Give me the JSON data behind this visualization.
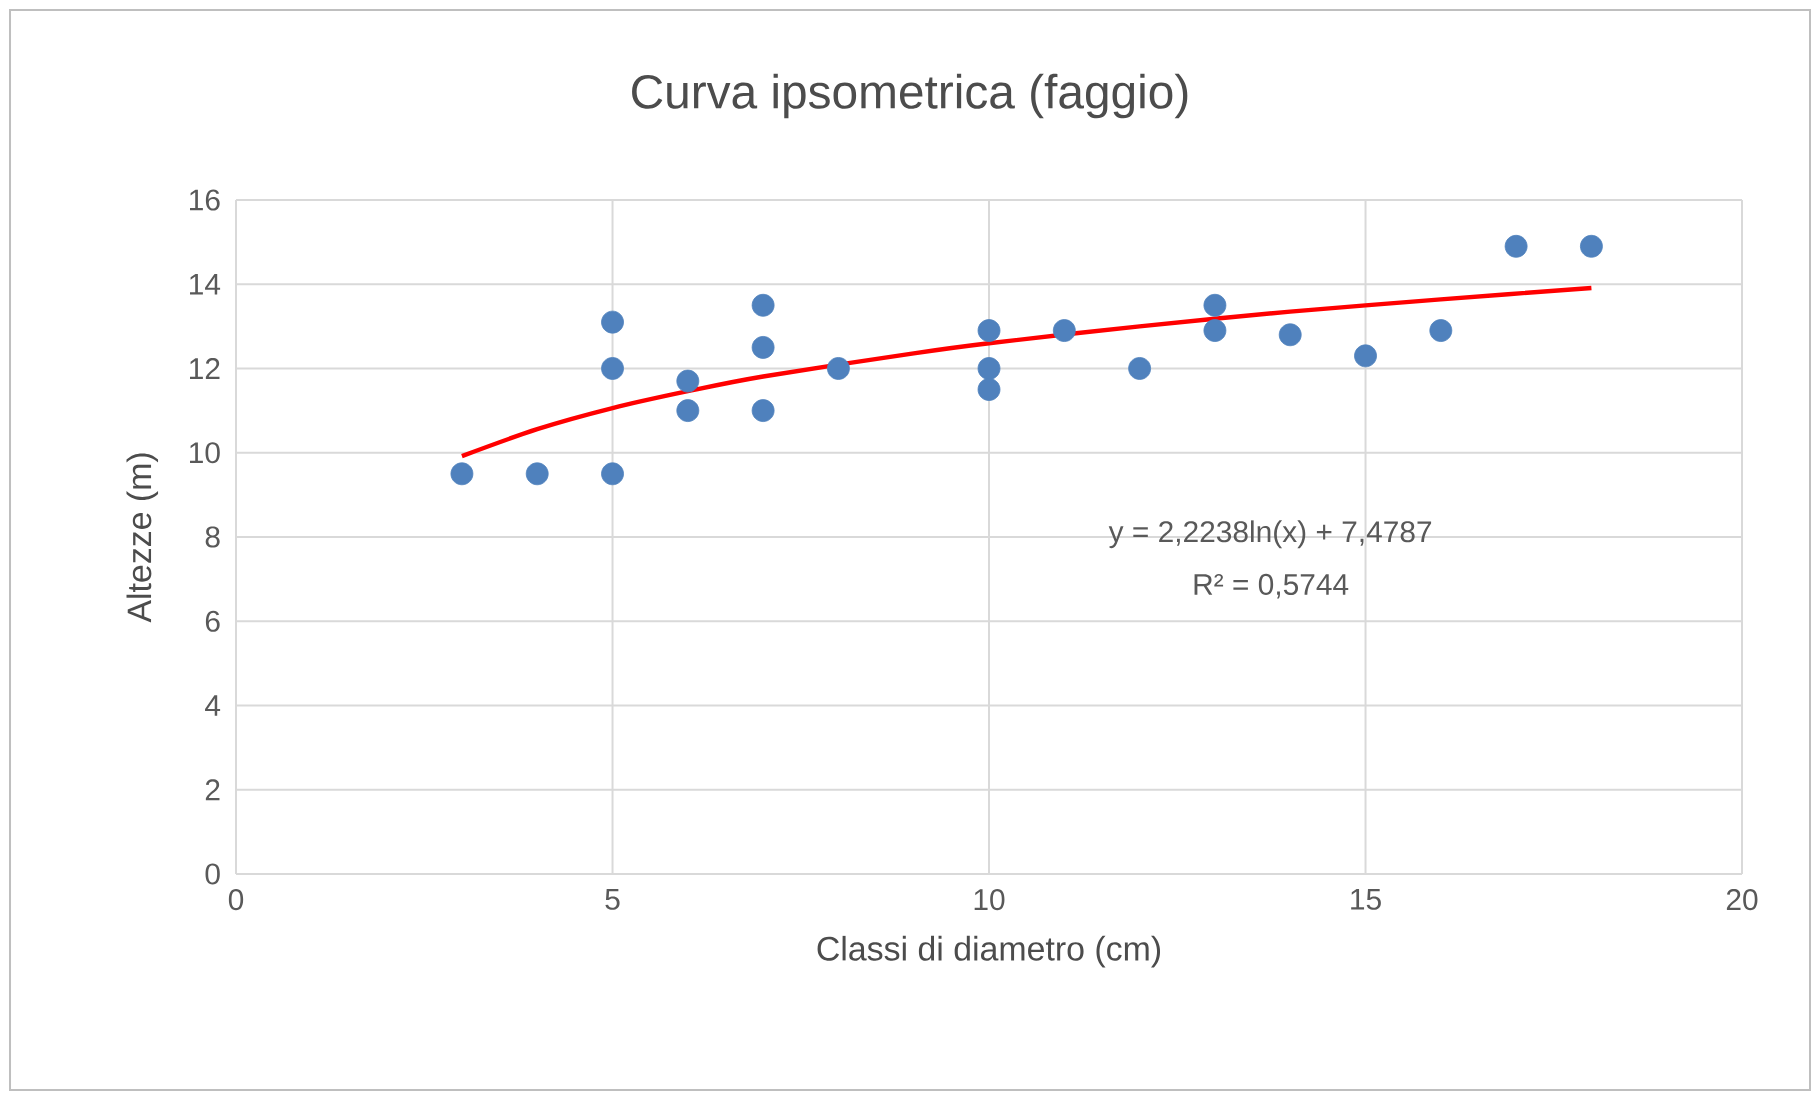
{
  "chart_data": {
    "type": "scatter",
    "title": "Curva ipsometrica (faggio)",
    "xlabel": "Classi di diametro (cm)",
    "ylabel": "Altezze (m)",
    "xlim": [
      0,
      20
    ],
    "xticks": [
      0,
      5,
      10,
      15,
      20
    ],
    "ylim": [
      0,
      16
    ],
    "yticks": [
      0,
      2,
      4,
      6,
      8,
      10,
      12,
      14,
      16
    ],
    "grid": true,
    "legend": false,
    "marker": "circle",
    "annotations": [
      "y = 2,2238ln(x) + 7,4787",
      "R² = 0,5744"
    ],
    "series": [
      {
        "color": "#4f81bd",
        "x": [
          3,
          4,
          5,
          5,
          5,
          6,
          6,
          7,
          7,
          7,
          8,
          10,
          10,
          10,
          11,
          12,
          13,
          13,
          14,
          15,
          16,
          17,
          18
        ],
        "values": [
          9.5,
          9.5,
          9.5,
          12.0,
          13.1,
          11.7,
          11.0,
          13.5,
          12.5,
          11.0,
          12.0,
          12.9,
          12.0,
          11.5,
          12.9,
          12.0,
          13.5,
          12.9,
          12.8,
          12.3,
          12.9,
          14.9,
          14.9
        ]
      },
      {
        "type": "line",
        "color": "#ff0000",
        "marker": "none",
        "x": [
          3,
          4,
          5,
          6,
          7,
          9,
          10,
          12,
          14,
          16,
          18
        ],
        "values": [
          9.92,
          10.56,
          11.06,
          11.46,
          11.81,
          12.36,
          12.6,
          13.0,
          13.35,
          13.64,
          13.91
        ]
      }
    ]
  }
}
